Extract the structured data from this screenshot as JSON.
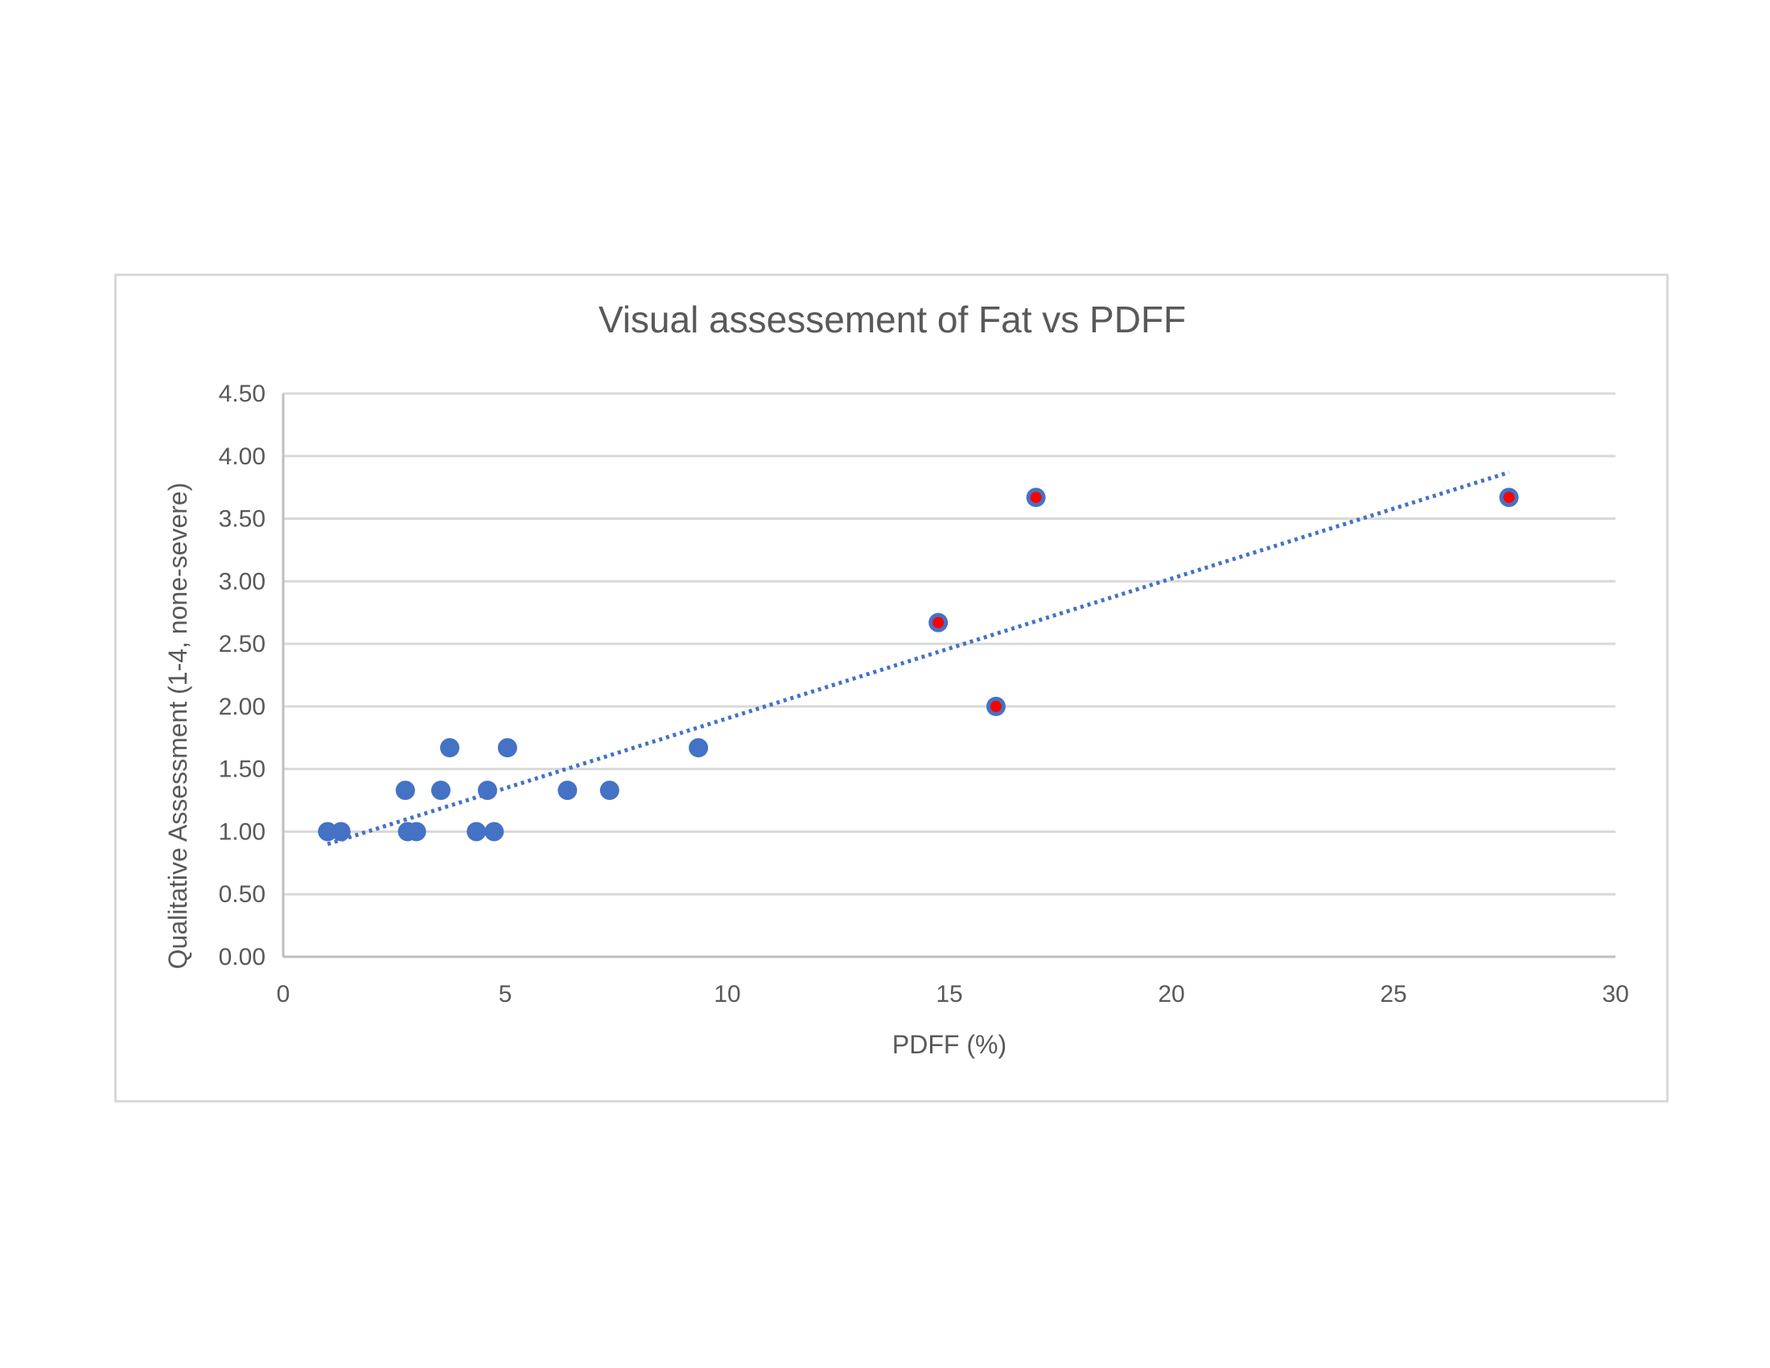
{
  "chart_data": {
    "type": "scatter",
    "title": "Visual assessement of Fat vs PDFF",
    "xlabel": "PDFF (%)",
    "ylabel": "Qualitative Assessment (1-4, none-severe)",
    "xlim": [
      0,
      30
    ],
    "ylim": [
      0,
      4.5
    ],
    "x_ticks": [
      "0",
      "5",
      "10",
      "15",
      "20",
      "25",
      "30"
    ],
    "y_ticks": [
      "0.00",
      "0.50",
      "1.00",
      "1.50",
      "2.00",
      "2.50",
      "3.00",
      "3.50",
      "4.00",
      "4.50"
    ],
    "grid": "horizontal",
    "legend": "none",
    "series": [
      {
        "color": "#4472c4",
        "points": [
          {
            "x": 1.0,
            "y": 1.0
          },
          {
            "x": 1.3,
            "y": 1.0
          },
          {
            "x": 2.8,
            "y": 1.0
          },
          {
            "x": 3.0,
            "y": 1.0
          },
          {
            "x": 4.35,
            "y": 1.0
          },
          {
            "x": 4.75,
            "y": 1.0
          },
          {
            "x": 2.75,
            "y": 1.33
          },
          {
            "x": 3.55,
            "y": 1.33
          },
          {
            "x": 4.6,
            "y": 1.33
          },
          {
            "x": 6.4,
            "y": 1.33
          },
          {
            "x": 7.35,
            "y": 1.33
          },
          {
            "x": 3.75,
            "y": 1.67
          },
          {
            "x": 5.05,
            "y": 1.67
          },
          {
            "x": 9.35,
            "y": 1.67
          },
          {
            "x": 14.75,
            "y": 2.67,
            "highlight": true
          },
          {
            "x": 16.05,
            "y": 2.0,
            "highlight": true
          },
          {
            "x": 16.95,
            "y": 3.67,
            "highlight": true
          },
          {
            "x": 27.6,
            "y": 3.67,
            "highlight": true
          }
        ]
      }
    ],
    "highlight_color": "#ff0000",
    "trendline": {
      "type": "linear",
      "style": "dotted",
      "color": "#4472c4",
      "x0": 1.0,
      "y0": 0.9,
      "x1": 27.6,
      "y1": 3.87
    }
  }
}
